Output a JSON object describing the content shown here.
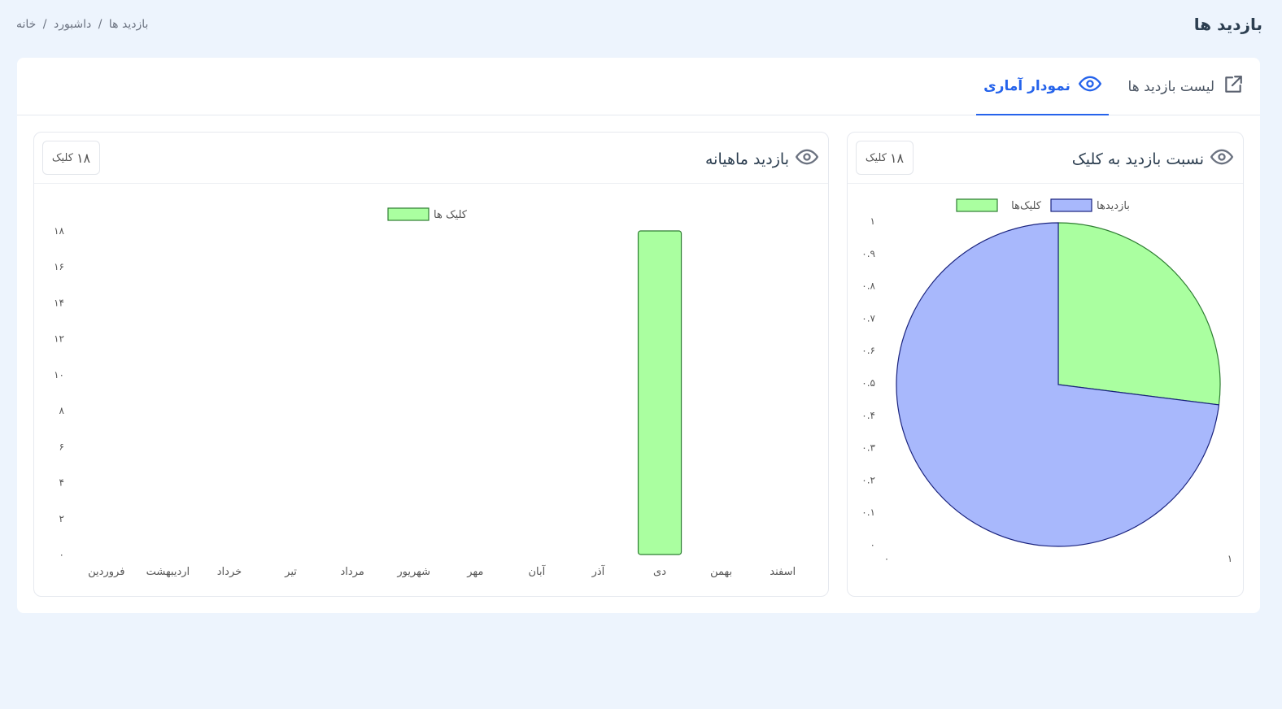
{
  "header": {
    "title": "بازدید ها",
    "breadcrumb": [
      "خانه",
      "داشبورد",
      "بازدید ها"
    ]
  },
  "tabs": [
    {
      "label": "لیست بازدید ها",
      "icon": "external-link-icon",
      "active": false
    },
    {
      "label": "نمودار آماری",
      "icon": "eye-icon",
      "active": true
    }
  ],
  "panels": {
    "pie": {
      "title": "نسبت بازدید به کلیک",
      "badge_num": "۱۸",
      "badge_label": "کلیک"
    },
    "bar": {
      "title": "بازدید ماهیانه",
      "badge_num": "۱۸",
      "badge_label": "کلیک"
    }
  },
  "colors": {
    "accent": "#2563eb",
    "clicks_fill": "#aaffa0",
    "clicks_stroke": "#2e7d32",
    "visits_fill": "#a8b8fc",
    "visits_stroke": "#1a237e"
  },
  "chart_data": [
    {
      "type": "pie",
      "legend": [
        "بازدیدها",
        "کلیک‌ها"
      ],
      "values": [
        73,
        27
      ],
      "y_ticks": [
        "۰",
        "۰.۱",
        "۰.۲",
        "۰.۳",
        "۰.۴",
        "۰.۵",
        "۰.۶",
        "۰.۷",
        "۰.۸",
        "۰.۹",
        "۱"
      ],
      "x_ticks": [
        "۰",
        "۱"
      ]
    },
    {
      "type": "bar",
      "legend": [
        "کلیک ها"
      ],
      "categories": [
        "فروردین",
        "اردیبهشت",
        "خرداد",
        "تیر",
        "مرداد",
        "شهریور",
        "مهر",
        "آبان",
        "آذر",
        "دی",
        "بهمن",
        "اسفند"
      ],
      "values": [
        0,
        0,
        0,
        0,
        0,
        0,
        0,
        0,
        0,
        18,
        0,
        0
      ],
      "ylim": [
        0,
        18
      ],
      "y_ticks": [
        "۰",
        "۲",
        "۴",
        "۶",
        "۸",
        "۱۰",
        "۱۲",
        "۱۴",
        "۱۶",
        "۱۸"
      ]
    }
  ]
}
